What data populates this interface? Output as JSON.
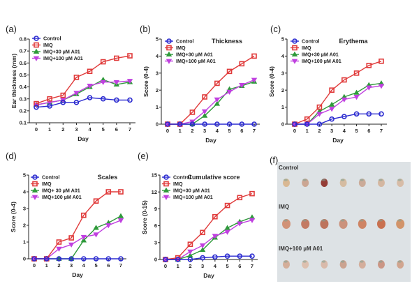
{
  "legend_colors": {
    "Control": "#2b2bd0",
    "IMQ": "#e03a3a",
    "IMQ+30 µM A01": "#2e9a3a",
    "IMQ+100 µM A01": "#c040e0"
  },
  "chart_data": [
    {
      "panel": "(a)",
      "type": "line",
      "title": "",
      "xlabel": "Day",
      "ylabel": "Ear thickness (mm)",
      "x": [
        0,
        1,
        2,
        3,
        4,
        5,
        6,
        7
      ],
      "xticks": [
        "0",
        "1",
        "2",
        "3",
        "4",
        "5",
        "6",
        "7"
      ],
      "ylim": [
        0.1,
        0.8
      ],
      "yticks": [
        "0.1",
        "0.2",
        "0.3",
        "0.4",
        "0.5",
        "0.6",
        "0.7",
        "0.8"
      ],
      "ytick_values": [
        0.1,
        0.2,
        0.3,
        0.4,
        0.5,
        0.6,
        0.7,
        0.8
      ],
      "legend": "top-left",
      "series": [
        {
          "name": "Control",
          "marker": "circle",
          "values": [
            0.23,
            0.24,
            0.27,
            0.27,
            0.31,
            0.3,
            0.29,
            0.29
          ]
        },
        {
          "name": "IMQ",
          "marker": "square",
          "values": [
            0.26,
            0.3,
            0.33,
            0.48,
            0.53,
            0.61,
            0.64,
            0.66
          ]
        },
        {
          "name": "IMQ+30 µM A01",
          "marker": "triangle-up",
          "values": [
            0.25,
            0.27,
            0.29,
            0.34,
            0.4,
            0.46,
            0.42,
            0.44
          ]
        },
        {
          "name": "IMQ+100 µM A01",
          "marker": "triangle-down",
          "values": [
            0.25,
            0.27,
            0.29,
            0.35,
            0.41,
            0.44,
            0.44,
            0.45
          ]
        }
      ]
    },
    {
      "panel": "(b)",
      "type": "line",
      "title": "Thickness",
      "xlabel": "Day",
      "ylabel": "Score (0-4)",
      "x": [
        0,
        1,
        2,
        3,
        4,
        5,
        6,
        7
      ],
      "xticks": [
        "0",
        "1",
        "2",
        "3",
        "4",
        "5",
        "6",
        "7"
      ],
      "ylim": [
        0,
        5
      ],
      "yticks": [
        "0",
        "1",
        "2",
        "3",
        "4",
        "5"
      ],
      "ytick_values": [
        0,
        1,
        2,
        3,
        4,
        5
      ],
      "legend": "top-left",
      "series": [
        {
          "name": "Control",
          "marker": "circle",
          "values": [
            0,
            0,
            0,
            0,
            0,
            0,
            0,
            0
          ]
        },
        {
          "name": "IMQ",
          "marker": "square",
          "values": [
            0,
            0,
            0.7,
            1.6,
            2.4,
            3.1,
            3.55,
            4.0
          ]
        },
        {
          "name": "IMQ+30 µM A01",
          "marker": "triangle-up",
          "values": [
            0,
            0,
            0,
            0.5,
            1.2,
            2.05,
            2.25,
            2.5
          ]
        },
        {
          "name": "IMQ+100 µM A01",
          "marker": "triangle-down",
          "values": [
            0,
            0,
            0.15,
            0.75,
            1.45,
            1.9,
            2.3,
            2.6
          ]
        }
      ]
    },
    {
      "panel": "(c)",
      "type": "line",
      "title": "Erythema",
      "xlabel": "Day",
      "ylabel": "Score (0-4)",
      "x": [
        0,
        1,
        2,
        3,
        4,
        5,
        6,
        7
      ],
      "xticks": [
        "0",
        "1",
        "2",
        "3",
        "4",
        "5",
        "6",
        "7"
      ],
      "ylim": [
        0,
        5
      ],
      "yticks": [
        "0",
        "1",
        "2",
        "3",
        "4",
        "5"
      ],
      "ytick_values": [
        0,
        1,
        2,
        3,
        4,
        5
      ],
      "legend": "top-left",
      "series": [
        {
          "name": "Control",
          "marker": "circle",
          "values": [
            0,
            0,
            0,
            0.3,
            0.45,
            0.6,
            0.6,
            0.6
          ]
        },
        {
          "name": "IMQ",
          "marker": "square",
          "values": [
            0,
            0.3,
            1.0,
            2.0,
            2.6,
            3.0,
            3.45,
            3.7
          ]
        },
        {
          "name": "IMQ+30 µM A01",
          "marker": "triangle-up",
          "values": [
            0,
            0,
            0.75,
            1.15,
            1.6,
            1.85,
            2.3,
            2.4
          ]
        },
        {
          "name": "IMQ+100 µM A01",
          "marker": "triangle-down",
          "values": [
            0,
            0,
            0.6,
            0.9,
            1.45,
            1.6,
            2.15,
            2.25
          ]
        }
      ]
    },
    {
      "panel": "(d)",
      "type": "line",
      "title": "Scales",
      "xlabel": "Day",
      "ylabel": "Score (0-4)",
      "x": [
        0,
        1,
        2,
        3,
        4,
        5,
        6,
        7
      ],
      "xticks": [
        "0",
        "1",
        "2",
        "3",
        "4",
        "5",
        "6",
        "7"
      ],
      "ylim": [
        0,
        5
      ],
      "yticks": [
        "0",
        "1",
        "2",
        "3",
        "4",
        "5"
      ],
      "ytick_values": [
        0,
        1,
        2,
        3,
        4,
        5
      ],
      "legend": "top-left",
      "series": [
        {
          "name": "Control",
          "marker": "circle",
          "values": [
            0,
            0,
            0,
            0,
            0,
            0,
            0,
            0
          ]
        },
        {
          "name": "IMQ",
          "marker": "square",
          "values": [
            0,
            0,
            1.0,
            1.25,
            2.6,
            3.45,
            4.0,
            4.0
          ]
        },
        {
          "name": "IMQ+ 30 µM A01",
          "marker": "triangle-up",
          "values": [
            0,
            0,
            0,
            0,
            1.1,
            1.85,
            2.15,
            2.55
          ]
        },
        {
          "name": "IMQ+100 µM A01",
          "marker": "triangle-down",
          "values": [
            0,
            0,
            0.6,
            0.85,
            1.3,
            1.45,
            2.0,
            2.3
          ]
        }
      ]
    },
    {
      "panel": "(e)",
      "type": "line",
      "title": "Cumulative score",
      "xlabel": "Day",
      "ylabel": "Score (0-15)",
      "x": [
        0,
        1,
        2,
        3,
        4,
        5,
        6,
        7
      ],
      "xticks": [
        "0",
        "1",
        "2",
        "3",
        "4",
        "5",
        "6",
        "7"
      ],
      "ylim": [
        0,
        15
      ],
      "yticks": [
        "0",
        "3",
        "6",
        "9",
        "12",
        "15"
      ],
      "ytick_values": [
        0,
        3,
        6,
        9,
        12,
        15
      ],
      "legend": "top-left",
      "series": [
        {
          "name": "Control",
          "marker": "circle",
          "values": [
            0,
            0,
            0,
            0.3,
            0.45,
            0.6,
            0.6,
            0.6
          ]
        },
        {
          "name": "IMQ",
          "marker": "square",
          "values": [
            0,
            0.3,
            2.7,
            4.8,
            7.6,
            9.6,
            11.0,
            11.7
          ]
        },
        {
          "name": "IMQ+30 µM A01",
          "marker": "triangle-up",
          "values": [
            0,
            0,
            0.7,
            1.7,
            3.9,
            5.6,
            6.7,
            7.5
          ]
        },
        {
          "name": "IMQ+100 µM A01",
          "marker": "triangle-down",
          "values": [
            0,
            0,
            1.4,
            2.5,
            4.2,
            4.9,
            6.4,
            7.0
          ]
        }
      ]
    }
  ],
  "photo_panel": {
    "panel": "(f)",
    "rows": [
      {
        "label": "Control",
        "count": 7
      },
      {
        "label": "IMQ",
        "count": 7
      },
      {
        "label": "IMQ+100 µM A01",
        "count": 7
      }
    ]
  }
}
